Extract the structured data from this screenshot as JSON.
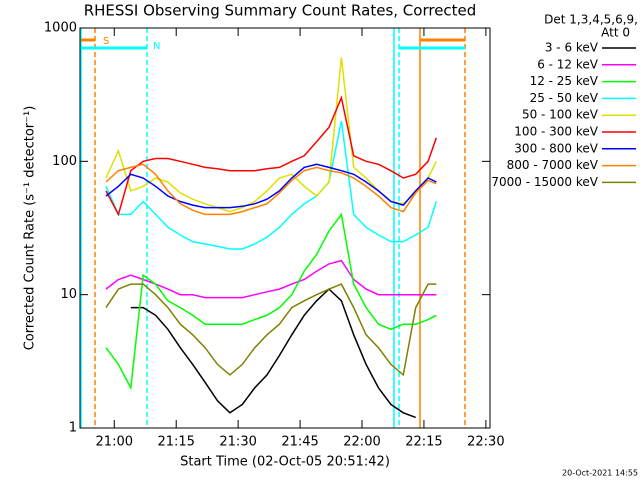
{
  "chart_data": {
    "type": "line",
    "title": "RHESSI Observing Summary Count Rates, Corrected",
    "xlabel": "Start Time (02-Oct-05 20:51:42)",
    "ylabel": "Corrected Count Rate (s⁻¹ detector⁻¹)",
    "legend_title": [
      "Det 1,3,4,5,6,9,",
      "Att 0"
    ],
    "footer": "20-Oct-2021 14:55",
    "annotations": [
      "S",
      "N"
    ],
    "log_y": true,
    "legend": "outside-right",
    "xlim": [
      1251.7,
      1351
    ],
    "xticks": [
      {
        "value": 1260,
        "label": "21:00"
      },
      {
        "value": 1275,
        "label": "21:15"
      },
      {
        "value": 1290,
        "label": "21:30"
      },
      {
        "value": 1305,
        "label": "21:45"
      },
      {
        "value": 1320,
        "label": "22:00"
      },
      {
        "value": 1335,
        "label": "22:15"
      },
      {
        "value": 1350,
        "label": "22:30"
      }
    ],
    "ylim": [
      1,
      1000
    ],
    "yticks": [
      1,
      10,
      100,
      1000
    ],
    "x": [
      1258,
      1261,
      1264,
      1267,
      1270,
      1273,
      1276,
      1279,
      1282,
      1285,
      1288,
      1291,
      1294,
      1297,
      1300,
      1303,
      1306,
      1309,
      1312,
      1315,
      1318,
      1321,
      1324,
      1327,
      1330,
      1333,
      1336,
      1338
    ],
    "series": [
      {
        "name": "3 - 6 keV",
        "color": "#000000",
        "values": [
          null,
          null,
          8,
          8,
          7,
          5.5,
          4,
          3,
          2.2,
          1.6,
          1.3,
          1.5,
          2,
          2.5,
          3.5,
          5,
          7,
          9,
          11,
          9,
          5,
          3,
          2,
          1.5,
          1.3,
          1.2,
          null,
          null
        ]
      },
      {
        "name": "6 - 12 keV",
        "color": "#ff00ff",
        "values": [
          11,
          13,
          14,
          13,
          12,
          11,
          10,
          10,
          9.5,
          9.5,
          9.5,
          9.5,
          10,
          10.5,
          11,
          12,
          13,
          15,
          17,
          18,
          13,
          11,
          10,
          10,
          10,
          10,
          10,
          10
        ]
      },
      {
        "name": "12 - 25 keV",
        "color": "#00ff00",
        "values": [
          4,
          3,
          2,
          14,
          12,
          9,
          8,
          7,
          6,
          6,
          6,
          6,
          6.5,
          7,
          8,
          10,
          15,
          20,
          30,
          40,
          12,
          8,
          6,
          5.5,
          6,
          6,
          6.5,
          7
        ]
      },
      {
        "name": "25 - 50 keV",
        "color": "#00ffff",
        "values": [
          65,
          40,
          40,
          50,
          40,
          32,
          28,
          25,
          24,
          23,
          22,
          22,
          24,
          27,
          32,
          40,
          48,
          55,
          70,
          200,
          40,
          32,
          28,
          25,
          25,
          28,
          32,
          50
        ]
      },
      {
        "name": "50 - 100 keV",
        "color": "#e0e000",
        "values": [
          75,
          120,
          60,
          65,
          75,
          70,
          58,
          52,
          48,
          45,
          42,
          45,
          50,
          60,
          75,
          80,
          65,
          55,
          70,
          600,
          90,
          75,
          60,
          50,
          48,
          58,
          75,
          100
        ]
      },
      {
        "name": "100 - 300 keV",
        "color": "#ff0000",
        "values": [
          60,
          40,
          85,
          100,
          105,
          105,
          100,
          95,
          90,
          88,
          85,
          85,
          85,
          88,
          90,
          100,
          110,
          140,
          180,
          300,
          110,
          100,
          95,
          85,
          75,
          80,
          100,
          150
        ]
      },
      {
        "name": "300 - 800 keV",
        "color": "#0000ff",
        "values": [
          55,
          65,
          80,
          75,
          65,
          55,
          50,
          47,
          45,
          45,
          45,
          46,
          48,
          52,
          60,
          75,
          90,
          95,
          90,
          85,
          80,
          70,
          60,
          50,
          47,
          60,
          75,
          70
        ]
      },
      {
        "name": "800 - 7000 keV",
        "color": "#ff8000",
        "values": [
          70,
          85,
          90,
          95,
          80,
          60,
          48,
          43,
          40,
          40,
          40,
          42,
          45,
          48,
          58,
          72,
          85,
          90,
          85,
          82,
          75,
          65,
          55,
          45,
          42,
          58,
          72,
          68
        ]
      },
      {
        "name": "7000 - 15000 keV",
        "color": "#808000",
        "values": [
          8,
          11,
          12,
          12,
          10,
          8,
          6,
          5,
          4,
          3,
          2.5,
          3,
          4,
          5,
          6,
          8,
          9,
          10,
          11,
          12,
          8,
          5,
          4,
          3,
          2.5,
          8,
          12,
          12
        ]
      }
    ]
  }
}
